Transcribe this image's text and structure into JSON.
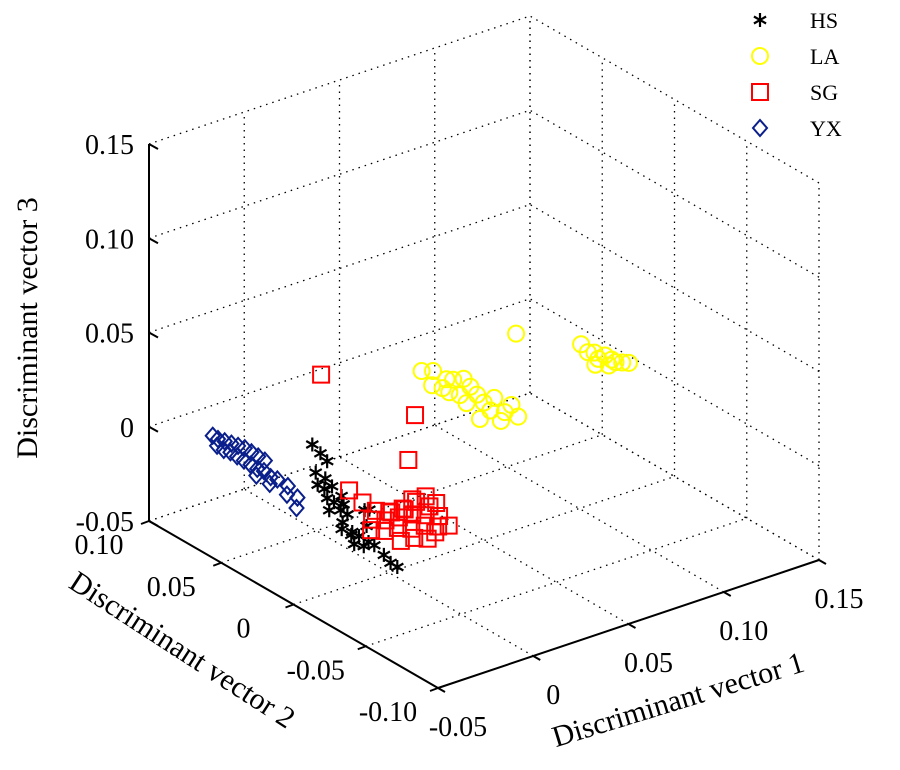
{
  "chart_data": {
    "type": "scatter",
    "title": "",
    "xlabel": "Discriminant vector 1",
    "ylabel": "Discriminant vector 2",
    "zlabel": "Discriminant vector 3",
    "xlim": [
      -0.05,
      0.15
    ],
    "ylim": [
      -0.1,
      0.1
    ],
    "zlim": [
      -0.05,
      0.15
    ],
    "x_ticks": [
      "-0.05",
      "0",
      "0.05",
      "0.10",
      "0.15"
    ],
    "y_ticks": [
      "-0.10",
      "-0.05",
      "0",
      "0.05",
      "0.10"
    ],
    "z_ticks": [
      "-0.05",
      "0",
      "0.05",
      "0.10",
      "0.15"
    ],
    "grid": true,
    "legend_position": "top-right",
    "series": [
      {
        "name": "HS",
        "marker": "asterisk",
        "color": "#000000",
        "points": [
          [
            -0.006,
            0.045,
            0.0
          ],
          [
            -0.004,
            0.042,
            -0.004
          ],
          [
            -0.002,
            0.04,
            -0.008
          ],
          [
            -0.008,
            0.04,
            -0.012
          ],
          [
            -0.006,
            0.036,
            -0.014
          ],
          [
            -0.004,
            0.034,
            -0.018
          ],
          [
            -0.008,
            0.032,
            -0.022
          ],
          [
            -0.006,
            0.03,
            -0.024
          ],
          [
            -0.004,
            0.028,
            -0.028
          ],
          [
            -0.01,
            0.028,
            -0.026
          ],
          [
            -0.002,
            0.026,
            -0.03
          ],
          [
            -0.006,
            0.024,
            -0.032
          ],
          [
            -0.008,
            0.022,
            -0.034
          ],
          [
            -0.004,
            0.02,
            -0.036
          ],
          [
            -0.002,
            0.018,
            -0.038
          ],
          [
            -0.006,
            0.016,
            -0.04
          ],
          [
            0.004,
            0.022,
            -0.028
          ],
          [
            0.002,
            0.018,
            -0.034
          ],
          [
            0.0,
            0.01,
            -0.04
          ],
          [
            0.002,
            0.006,
            -0.044
          ],
          [
            -0.004,
            0.012,
            -0.04
          ],
          [
            0.004,
            0.004,
            -0.048
          ],
          [
            0.006,
            0.002,
            -0.05
          ],
          [
            -0.008,
            0.034,
            -0.018
          ],
          [
            -0.01,
            0.036,
            -0.016
          ],
          [
            -0.004,
            0.026,
            -0.024
          ],
          [
            -0.002,
            0.03,
            -0.022
          ],
          [
            -0.006,
            0.018,
            -0.036
          ],
          [
            0.0,
            0.014,
            -0.04
          ],
          [
            0.008,
            0.024,
            -0.03
          ]
        ]
      },
      {
        "name": "LA",
        "marker": "circle",
        "color": "#ffff00",
        "points": [
          [
            0.04,
            0.03,
            0.03
          ],
          [
            0.046,
            0.03,
            0.028
          ],
          [
            0.05,
            0.026,
            0.024
          ],
          [
            0.044,
            0.028,
            0.022
          ],
          [
            0.048,
            0.026,
            0.02
          ],
          [
            0.052,
            0.024,
            0.024
          ],
          [
            0.056,
            0.022,
            0.024
          ],
          [
            0.05,
            0.024,
            0.018
          ],
          [
            0.054,
            0.022,
            0.016
          ],
          [
            0.058,
            0.02,
            0.02
          ],
          [
            0.06,
            0.018,
            0.016
          ],
          [
            0.056,
            0.02,
            0.012
          ],
          [
            0.062,
            0.016,
            0.012
          ],
          [
            0.066,
            0.014,
            0.014
          ],
          [
            0.064,
            0.014,
            0.008
          ],
          [
            0.07,
            0.012,
            0.006
          ],
          [
            0.068,
            0.012,
            0.002
          ],
          [
            0.074,
            0.008,
            0.004
          ],
          [
            0.06,
            0.016,
            0.004
          ],
          [
            0.072,
            0.01,
            0.01
          ],
          [
            0.082,
            0.02,
            0.04
          ],
          [
            0.104,
            0.004,
            0.034
          ],
          [
            0.106,
            0.002,
            0.03
          ],
          [
            0.108,
            0.0,
            0.03
          ],
          [
            0.11,
            0.0,
            0.026
          ],
          [
            0.112,
            -0.002,
            0.028
          ],
          [
            0.114,
            -0.004,
            0.026
          ],
          [
            0.116,
            -0.004,
            0.024
          ],
          [
            0.118,
            -0.006,
            0.024
          ],
          [
            0.11,
            0.002,
            0.022
          ],
          [
            0.114,
            -0.002,
            0.022
          ],
          [
            0.12,
            -0.008,
            0.024
          ]
        ]
      },
      {
        "name": "SG",
        "marker": "square",
        "color": "#ff0000",
        "points": [
          [
            0.01,
            0.06,
            0.025
          ],
          [
            0.032,
            0.024,
            0.012
          ],
          [
            0.03,
            0.026,
            -0.012
          ],
          [
            0.008,
            0.038,
            -0.026
          ],
          [
            0.012,
            0.034,
            -0.032
          ],
          [
            0.016,
            0.03,
            -0.036
          ],
          [
            0.02,
            0.026,
            -0.036
          ],
          [
            0.024,
            0.022,
            -0.034
          ],
          [
            0.028,
            0.018,
            -0.03
          ],
          [
            0.032,
            0.014,
            -0.032
          ],
          [
            0.014,
            0.03,
            -0.04
          ],
          [
            0.018,
            0.026,
            -0.04
          ],
          [
            0.022,
            0.022,
            -0.038
          ],
          [
            0.026,
            0.018,
            -0.036
          ],
          [
            0.03,
            0.014,
            -0.036
          ],
          [
            0.034,
            0.01,
            -0.036
          ],
          [
            0.012,
            0.028,
            -0.044
          ],
          [
            0.016,
            0.024,
            -0.044
          ],
          [
            0.02,
            0.02,
            -0.042
          ],
          [
            0.024,
            0.016,
            -0.042
          ],
          [
            0.028,
            0.012,
            -0.04
          ],
          [
            0.032,
            0.008,
            -0.04
          ],
          [
            0.02,
            0.018,
            -0.048
          ],
          [
            0.024,
            0.014,
            -0.046
          ],
          [
            0.028,
            0.01,
            -0.046
          ],
          [
            0.03,
            0.014,
            -0.026
          ],
          [
            0.026,
            0.018,
            -0.028
          ],
          [
            0.032,
            0.01,
            -0.044
          ],
          [
            0.036,
            0.006,
            -0.04
          ],
          [
            0.018,
            0.022,
            -0.034
          ],
          [
            0.022,
            0.018,
            -0.032
          ],
          [
            0.034,
            0.012,
            -0.03
          ]
        ]
      },
      {
        "name": "YX",
        "marker": "diamond",
        "color": "#0a1f8c",
        "points": [
          [
            -0.034,
            0.077,
            0.0
          ],
          [
            -0.032,
            0.076,
            -0.002
          ],
          [
            -0.03,
            0.074,
            -0.003
          ],
          [
            -0.034,
            0.074,
            -0.004
          ],
          [
            -0.028,
            0.072,
            -0.004
          ],
          [
            -0.032,
            0.072,
            -0.006
          ],
          [
            -0.026,
            0.07,
            -0.005
          ],
          [
            -0.03,
            0.07,
            -0.007
          ],
          [
            -0.024,
            0.068,
            -0.006
          ],
          [
            -0.028,
            0.068,
            -0.009
          ],
          [
            -0.022,
            0.066,
            -0.008
          ],
          [
            -0.026,
            0.066,
            -0.011
          ],
          [
            -0.024,
            0.064,
            -0.013
          ],
          [
            -0.02,
            0.064,
            -0.01
          ],
          [
            -0.022,
            0.062,
            -0.015
          ],
          [
            -0.018,
            0.062,
            -0.012
          ],
          [
            -0.024,
            0.06,
            -0.017
          ],
          [
            -0.02,
            0.06,
            -0.016
          ],
          [
            -0.018,
            0.058,
            -0.019
          ],
          [
            -0.02,
            0.056,
            -0.021
          ],
          [
            -0.016,
            0.056,
            -0.02
          ],
          [
            -0.012,
            0.054,
            -0.024
          ],
          [
            -0.014,
            0.052,
            -0.027
          ],
          [
            -0.01,
            0.05,
            -0.029
          ],
          [
            -0.012,
            0.048,
            -0.033
          ]
        ]
      }
    ]
  }
}
